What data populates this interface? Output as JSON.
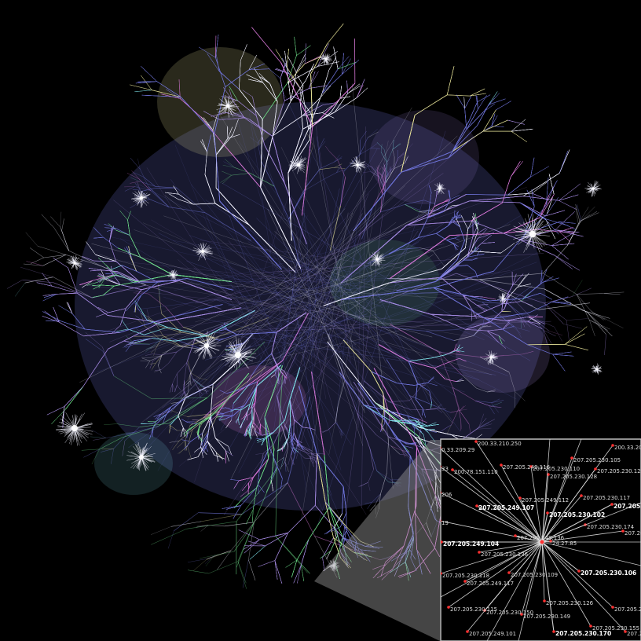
{
  "background_color": "#000000",
  "palette": {
    "blue": "#6f74d8",
    "violet": "#a58ae0",
    "white": "#f2f2ff",
    "yellow": "#e8e49a",
    "green": "#6fe08a",
    "cyan": "#7fe0e8",
    "magenta": "#d878d8",
    "node_dot": "#ff3030",
    "inset_border": "#bfbfbf",
    "zoom_cone": "#9a9a9a"
  },
  "inset": {
    "labels": [
      {
        "text": "200.33.210.250",
        "bold": false
      },
      {
        "text": "200.33.208.",
        "bold": false
      },
      {
        "text": "0.33.209.29",
        "bold": false
      },
      {
        "text": "207.205.230.105",
        "bold": false
      },
      {
        "text": "33",
        "bold": false
      },
      {
        "text": "200.78.151.110",
        "bold": false
      },
      {
        "text": "207.205.249.116",
        "bold": false
      },
      {
        "text": "207.205.230.110",
        "bold": false
      },
      {
        "text": "207.205.230.128",
        "bold": false
      },
      {
        "text": "207.205.230.123",
        "bold": false
      },
      {
        "text": "206",
        "bold": false
      },
      {
        "text": "207.205.230.117",
        "bold": false
      },
      {
        "text": "207.205.249.112",
        "bold": false
      },
      {
        "text": "207.205.249.107",
        "bold": true
      },
      {
        "text": "207.205.23",
        "bold": true
      },
      {
        "text": "207.205.230.102",
        "bold": true
      },
      {
        "text": "19",
        "bold": false
      },
      {
        "text": "207.205.230.174",
        "bold": false
      },
      {
        "text": "207.205",
        "bold": false
      },
      {
        "text": "207.205.249.136",
        "bold": false
      },
      {
        "text": "207.205.249.104",
        "bold": true
      },
      {
        "text": "24.27.85",
        "bold": false
      },
      {
        "text": "207.205.230.136",
        "bold": false
      },
      {
        "text": "207.205.230.106",
        "bold": true
      },
      {
        "text": "207.205.230.118",
        "bold": false
      },
      {
        "text": "207.205.230.109",
        "bold": false
      },
      {
        "text": "207.205.249.117",
        "bold": false
      },
      {
        "text": "207.205.230.126",
        "bold": false
      },
      {
        "text": "207.205.230.115",
        "bold": false
      },
      {
        "text": "207.205.230.150",
        "bold": false
      },
      {
        "text": "207.205.230.149",
        "bold": false
      },
      {
        "text": "207.205.2",
        "bold": false
      },
      {
        "text": "207.205.230.155",
        "bold": false
      },
      {
        "text": "207.205.249.101",
        "bold": false
      },
      {
        "text": "207.205.230.170",
        "bold": true
      },
      {
        "text": "207.20",
        "bold": false
      }
    ]
  }
}
